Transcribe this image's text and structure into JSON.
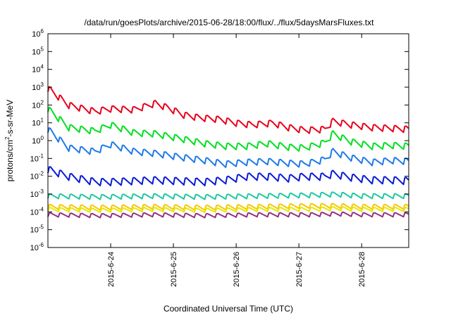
{
  "chart_data": {
    "type": "line",
    "title": "/data/run/goesPlots/archive/2015-06-28/18:00/flux/../flux/5daysMarsFluxes.txt",
    "xlabel": "Coordinated Universal Time (UTC)",
    "ylabel_parts": [
      "protons/cm",
      "2",
      "-s-sr-MeV"
    ],
    "y_scale": "log",
    "ylim_exp": [
      -6,
      6
    ],
    "y_tick_exponents": [
      -6,
      -5,
      -4,
      -3,
      -2,
      -1,
      0,
      1,
      2,
      3,
      4,
      5,
      6
    ],
    "y_tick_base": "10",
    "x_range_days": [
      "2015-06-23T00:00",
      "2015-06-28T18:00"
    ],
    "x_ticks": [
      {
        "label": "2015-6-24",
        "at": "2015-06-24T00:00"
      },
      {
        "label": "2015-6-25",
        "at": "2015-06-25T00:00"
      },
      {
        "label": "2015-6-26",
        "at": "2015-06-26T00:00"
      },
      {
        "label": "2015-6-27",
        "at": "2015-06-27T00:00"
      },
      {
        "label": "2015-6-28",
        "at": "2015-06-28T00:00"
      }
    ],
    "grid": false,
    "legend": "none",
    "sawtooth_period_hours": 4,
    "series": [
      {
        "color": "#e8001c",
        "log_anchors": [
          [
            0,
            2.95
          ],
          [
            8,
            2.0
          ],
          [
            18,
            1.65
          ],
          [
            24,
            1.8
          ],
          [
            33,
            1.75
          ],
          [
            41,
            2.1
          ],
          [
            46,
            1.85
          ],
          [
            52,
            1.45
          ],
          [
            58,
            1.3
          ],
          [
            66,
            1.2
          ],
          [
            72,
            1.0
          ],
          [
            78,
            0.9
          ],
          [
            86,
            1.0
          ],
          [
            92,
            0.75
          ],
          [
            98,
            0.6
          ],
          [
            106,
            0.65
          ],
          [
            109,
            1.1
          ],
          [
            116,
            0.9
          ],
          [
            124,
            0.75
          ],
          [
            132,
            0.7
          ],
          [
            138,
            0.65
          ]
        ],
        "amp": 0.4
      },
      {
        "color": "#00e020",
        "log_anchors": [
          [
            0,
            1.8
          ],
          [
            8,
            0.75
          ],
          [
            18,
            0.55
          ],
          [
            24,
            0.9
          ],
          [
            33,
            0.45
          ],
          [
            41,
            0.4
          ],
          [
            50,
            0.15
          ],
          [
            60,
            -0.15
          ],
          [
            68,
            -0.3
          ],
          [
            76,
            -0.3
          ],
          [
            84,
            -0.15
          ],
          [
            92,
            -0.35
          ],
          [
            98,
            -0.4
          ],
          [
            106,
            -0.1
          ],
          [
            109,
            0.4
          ],
          [
            116,
            -0.05
          ],
          [
            124,
            -0.3
          ],
          [
            132,
            -0.25
          ],
          [
            138,
            -0.3
          ]
        ],
        "amp": 0.4
      },
      {
        "color": "#1e7ae8",
        "log_anchors": [
          [
            0,
            0.65
          ],
          [
            8,
            -0.4
          ],
          [
            18,
            -0.6
          ],
          [
            24,
            -0.2
          ],
          [
            33,
            -0.6
          ],
          [
            41,
            -0.7
          ],
          [
            50,
            -0.9
          ],
          [
            60,
            -1.1
          ],
          [
            68,
            -1.3
          ],
          [
            76,
            -1.2
          ],
          [
            84,
            -1.15
          ],
          [
            92,
            -1.25
          ],
          [
            98,
            -1.3
          ],
          [
            106,
            -1.05
          ],
          [
            109,
            -0.6
          ],
          [
            116,
            -0.95
          ],
          [
            124,
            -1.2
          ],
          [
            132,
            -1.1
          ],
          [
            138,
            -1.15
          ]
        ],
        "amp": 0.4
      },
      {
        "color": "#0a1ad6",
        "log_anchors": [
          [
            0,
            -1.6
          ],
          [
            8,
            -2.0
          ],
          [
            18,
            -2.3
          ],
          [
            24,
            -2.3
          ],
          [
            33,
            -2.25
          ],
          [
            41,
            -2.2
          ],
          [
            50,
            -2.25
          ],
          [
            60,
            -2.3
          ],
          [
            68,
            -2.2
          ],
          [
            76,
            -2.0
          ],
          [
            84,
            -2.0
          ],
          [
            92,
            -2.1
          ],
          [
            98,
            -2.0
          ],
          [
            106,
            -2.0
          ],
          [
            109,
            -1.85
          ],
          [
            116,
            -2.05
          ],
          [
            124,
            -2.2
          ],
          [
            132,
            -2.2
          ],
          [
            138,
            -2.25
          ]
        ],
        "amp": 0.45
      },
      {
        "color": "#1ec8a0",
        "log_anchors": [
          [
            0,
            -3.1
          ],
          [
            20,
            -3.15
          ],
          [
            40,
            -3.1
          ],
          [
            60,
            -3.15
          ],
          [
            80,
            -3.1
          ],
          [
            100,
            -3.05
          ],
          [
            110,
            -3.0
          ],
          [
            120,
            -3.1
          ],
          [
            138,
            -3.1
          ]
        ],
        "amp": 0.3
      },
      {
        "color": "#f5c800",
        "log_anchors": [
          [
            0,
            -3.7
          ],
          [
            20,
            -3.75
          ],
          [
            40,
            -3.7
          ],
          [
            60,
            -3.75
          ],
          [
            80,
            -3.7
          ],
          [
            100,
            -3.65
          ],
          [
            110,
            -3.65
          ],
          [
            120,
            -3.7
          ],
          [
            138,
            -3.7
          ]
        ],
        "amp": 0.3
      },
      {
        "color": "#e6e600",
        "log_anchors": [
          [
            0,
            -3.85
          ],
          [
            20,
            -3.9
          ],
          [
            40,
            -3.85
          ],
          [
            60,
            -3.9
          ],
          [
            80,
            -3.85
          ],
          [
            100,
            -3.85
          ],
          [
            110,
            -3.8
          ],
          [
            120,
            -3.85
          ],
          [
            138,
            -3.85
          ]
        ],
        "amp": 0.25
      },
      {
        "color": "#943080",
        "log_anchors": [
          [
            0,
            -4.15
          ],
          [
            20,
            -4.2
          ],
          [
            40,
            -4.15
          ],
          [
            60,
            -4.2
          ],
          [
            80,
            -4.15
          ],
          [
            100,
            -4.15
          ],
          [
            110,
            -4.1
          ],
          [
            120,
            -4.15
          ],
          [
            138,
            -4.15
          ]
        ],
        "amp": 0.25
      }
    ]
  }
}
